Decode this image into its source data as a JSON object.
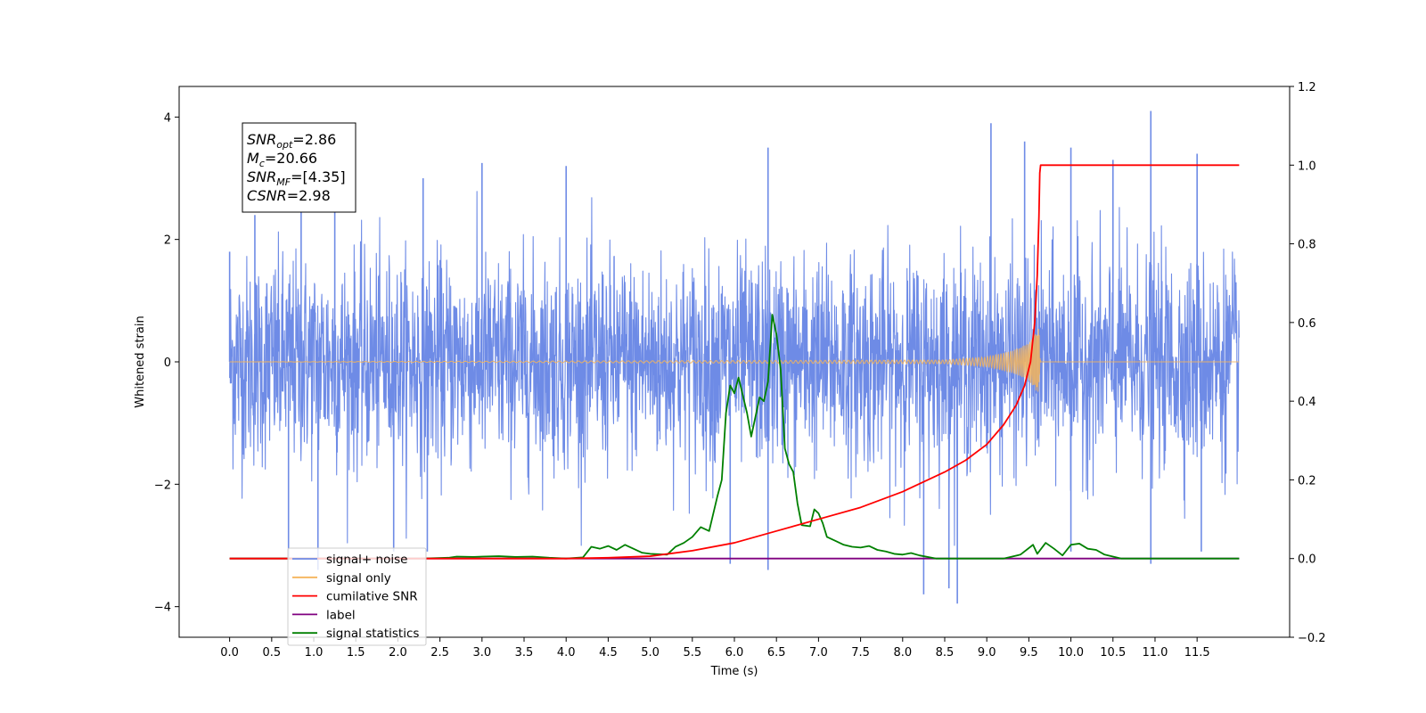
{
  "chart_data": {
    "type": "line",
    "title": "",
    "xlabel": "Time (s)",
    "ylabel": "Whitened strain",
    "y2label": "",
    "xlim": [
      -0.6,
      12.6
    ],
    "ylim": [
      -4.5,
      4.5
    ],
    "y2lim": [
      -0.2,
      1.2
    ],
    "x_ticks": [
      0.0,
      0.5,
      1.0,
      1.5,
      2.0,
      2.5,
      3.0,
      3.5,
      4.0,
      4.5,
      5.0,
      5.5,
      6.0,
      6.5,
      7.0,
      7.5,
      8.0,
      8.5,
      9.0,
      9.5,
      10.0,
      10.5,
      11.0,
      11.5
    ],
    "x_tick_labels": [
      "0.0",
      "0.5",
      "1.0",
      "1.5",
      "2.0",
      "2.5",
      "3.0",
      "3.5",
      "4.0",
      "4.5",
      "5.0",
      "5.5",
      "6.0",
      "6.5",
      "7.0",
      "7.5",
      "8.0",
      "8.5",
      "9.0",
      "9.5",
      "10.0",
      "10.5",
      "11.0",
      "11.5"
    ],
    "y_ticks": [
      -4,
      -2,
      0,
      2,
      4
    ],
    "y_tick_labels": [
      "−4",
      "−2",
      "0",
      "2",
      "4"
    ],
    "y2_ticks": [
      -0.2,
      0.0,
      0.2,
      0.4,
      0.6,
      0.8,
      1.0,
      1.2
    ],
    "y2_tick_labels": [
      "−0.2",
      "0.0",
      "0.2",
      "0.4",
      "0.6",
      "0.8",
      "1.0",
      "1.2"
    ],
    "grid": false,
    "legend_position": "lower-left",
    "series": [
      {
        "name": "signal+ noise",
        "axis": "left",
        "color": "#6e8be6",
        "note_style": "dense noise, amplitude within approx ±4",
        "x_range": [
          0.0,
          12.0
        ],
        "spike_points": [
          [
            0.0,
            1.8
          ],
          [
            0.3,
            2.4
          ],
          [
            0.85,
            2.8
          ],
          [
            1.25,
            2.9
          ],
          [
            2.3,
            3.0
          ],
          [
            3.0,
            3.25
          ],
          [
            4.0,
            3.2
          ],
          [
            6.4,
            3.5
          ],
          [
            9.05,
            3.9
          ],
          [
            9.45,
            3.6
          ],
          [
            10.0,
            3.5
          ],
          [
            10.5,
            3.3
          ],
          [
            10.95,
            4.1
          ],
          [
            11.5,
            3.4
          ],
          [
            0.7,
            -3.2
          ],
          [
            1.05,
            -3.4
          ],
          [
            1.95,
            -3.1
          ],
          [
            2.35,
            -3.1
          ],
          [
            5.95,
            -3.3
          ],
          [
            6.4,
            -3.4
          ],
          [
            8.25,
            -3.8
          ],
          [
            8.55,
            -3.7
          ],
          [
            8.65,
            -3.95
          ],
          [
            10.0,
            -3.1
          ],
          [
            10.95,
            -3.3
          ],
          [
            11.55,
            -3.1
          ]
        ]
      },
      {
        "name": "signal only",
        "axis": "left",
        "color": "#f5b45a",
        "note_style": "chirp near zero, peaks at merger ~9.6 s",
        "envelope": [
          [
            0.0,
            0.0
          ],
          [
            8.5,
            0.03
          ],
          [
            9.0,
            0.08
          ],
          [
            9.3,
            0.18
          ],
          [
            9.5,
            0.3
          ],
          [
            9.62,
            0.55
          ],
          [
            9.64,
            0.0
          ],
          [
            12.0,
            0.0
          ]
        ]
      },
      {
        "name": "cumilative SNR",
        "axis": "right",
        "color": "#ff0000",
        "points": [
          [
            0.0,
            0.0
          ],
          [
            4.0,
            0.0
          ],
          [
            4.5,
            0.002
          ],
          [
            5.0,
            0.006
          ],
          [
            5.5,
            0.02
          ],
          [
            6.0,
            0.04
          ],
          [
            6.5,
            0.07
          ],
          [
            7.0,
            0.1
          ],
          [
            7.5,
            0.13
          ],
          [
            8.0,
            0.17
          ],
          [
            8.5,
            0.22
          ],
          [
            8.75,
            0.25
          ],
          [
            9.0,
            0.29
          ],
          [
            9.2,
            0.34
          ],
          [
            9.35,
            0.39
          ],
          [
            9.45,
            0.44
          ],
          [
            9.52,
            0.5
          ],
          [
            9.57,
            0.6
          ],
          [
            9.6,
            0.72
          ],
          [
            9.62,
            0.87
          ],
          [
            9.63,
            0.98
          ],
          [
            9.64,
            1.0
          ],
          [
            12.0,
            1.0
          ]
        ]
      },
      {
        "name": "label",
        "axis": "right",
        "color": "#800080",
        "points": [
          [
            0.0,
            0.0
          ],
          [
            12.0,
            0.0
          ]
        ]
      },
      {
        "name": "signal statistics",
        "axis": "right",
        "color": "#008000",
        "points": [
          [
            0.0,
            0.0
          ],
          [
            2.3,
            0.0
          ],
          [
            2.6,
            0.002
          ],
          [
            2.7,
            0.005
          ],
          [
            2.9,
            0.004
          ],
          [
            3.0,
            0.005
          ],
          [
            3.2,
            0.006
          ],
          [
            3.4,
            0.004
          ],
          [
            3.6,
            0.005
          ],
          [
            3.8,
            0.002
          ],
          [
            4.0,
            0.0
          ],
          [
            4.2,
            0.003
          ],
          [
            4.3,
            0.03
          ],
          [
            4.4,
            0.025
          ],
          [
            4.5,
            0.032
          ],
          [
            4.6,
            0.022
          ],
          [
            4.7,
            0.035
          ],
          [
            4.8,
            0.025
          ],
          [
            4.9,
            0.015
          ],
          [
            5.0,
            0.012
          ],
          [
            5.2,
            0.01
          ],
          [
            5.3,
            0.03
          ],
          [
            5.4,
            0.04
          ],
          [
            5.5,
            0.055
          ],
          [
            5.6,
            0.08
          ],
          [
            5.7,
            0.07
          ],
          [
            5.8,
            0.16
          ],
          [
            5.85,
            0.2
          ],
          [
            5.9,
            0.37
          ],
          [
            5.95,
            0.44
          ],
          [
            6.0,
            0.42
          ],
          [
            6.05,
            0.46
          ],
          [
            6.15,
            0.37
          ],
          [
            6.2,
            0.31
          ],
          [
            6.3,
            0.41
          ],
          [
            6.35,
            0.4
          ],
          [
            6.4,
            0.45
          ],
          [
            6.45,
            0.62
          ],
          [
            6.5,
            0.57
          ],
          [
            6.55,
            0.48
          ],
          [
            6.6,
            0.28
          ],
          [
            6.65,
            0.24
          ],
          [
            6.7,
            0.22
          ],
          [
            6.75,
            0.14
          ],
          [
            6.8,
            0.085
          ],
          [
            6.9,
            0.082
          ],
          [
            6.95,
            0.125
          ],
          [
            7.0,
            0.115
          ],
          [
            7.05,
            0.09
          ],
          [
            7.1,
            0.055
          ],
          [
            7.2,
            0.045
          ],
          [
            7.3,
            0.035
          ],
          [
            7.4,
            0.03
          ],
          [
            7.5,
            0.028
          ],
          [
            7.6,
            0.032
          ],
          [
            7.7,
            0.022
          ],
          [
            7.8,
            0.018
          ],
          [
            7.9,
            0.012
          ],
          [
            8.0,
            0.01
          ],
          [
            8.1,
            0.014
          ],
          [
            8.2,
            0.008
          ],
          [
            8.4,
            0.0
          ],
          [
            9.2,
            0.0
          ],
          [
            9.4,
            0.01
          ],
          [
            9.55,
            0.035
          ],
          [
            9.6,
            0.012
          ],
          [
            9.7,
            0.04
          ],
          [
            9.8,
            0.025
          ],
          [
            9.9,
            0.008
          ],
          [
            10.0,
            0.035
          ],
          [
            10.1,
            0.038
          ],
          [
            10.2,
            0.025
          ],
          [
            10.3,
            0.022
          ],
          [
            10.4,
            0.01
          ],
          [
            10.6,
            0.0
          ],
          [
            12.0,
            0.0
          ]
        ]
      }
    ],
    "annotations": [
      {
        "base": "SNR",
        "sub": "opt",
        "value": "=2.86"
      },
      {
        "base": "M",
        "sub": "c",
        "value": "=20.66"
      },
      {
        "base": "SNR",
        "sub": "MF",
        "value": "=[4.35]"
      },
      {
        "base": "CSNR",
        "sub": "",
        "value": "=2.98"
      }
    ],
    "legend": [
      {
        "label": "signal+ noise",
        "color": "#6e8be6"
      },
      {
        "label": "signal only",
        "color": "#f5b45a"
      },
      {
        "label": "cumilative SNR",
        "color": "#ff0000"
      },
      {
        "label": "label",
        "color": "#800080"
      },
      {
        "label": "signal statistics",
        "color": "#008000"
      }
    ]
  }
}
